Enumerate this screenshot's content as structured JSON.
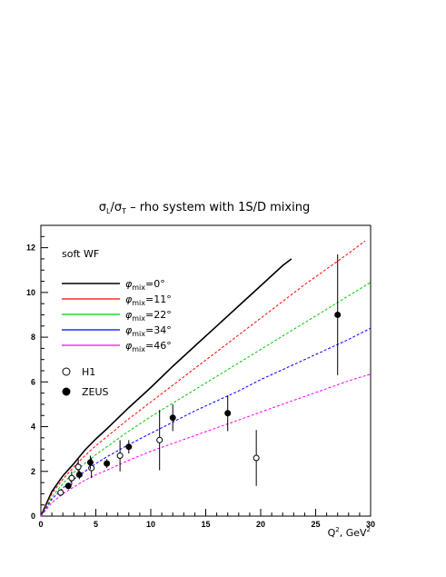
{
  "chart_data": {
    "type": "line",
    "title": "σL/σT – rho system with 1S/D mixing",
    "title_parts": {
      "sigma": "σ",
      "L": "L",
      "slash": "/",
      "T": "T",
      "rest": " – rho system with 1S/D mixing"
    },
    "annotation": "soft WF",
    "xlabel": "Q², GeV²",
    "xlabel_parts": {
      "Q": "Q",
      "sup1": "2",
      "mid": ", GeV",
      "sup2": "2"
    },
    "ylabel": "",
    "xlim": [
      0,
      30
    ],
    "ylim": [
      0,
      13
    ],
    "x_ticks": [
      0,
      5,
      10,
      15,
      20,
      25,
      30
    ],
    "y_ticks": [
      0,
      2,
      4,
      6,
      8,
      10,
      12
    ],
    "grid": false,
    "legend_position": "upper-left",
    "series": [
      {
        "name": "φmix=0°",
        "mix": "0°",
        "color": "#000000",
        "dashed": false,
        "x": [
          0,
          1,
          2,
          3,
          4,
          5,
          6,
          8,
          10,
          12,
          14,
          16,
          18,
          20,
          22,
          22.8
        ],
        "y": [
          0,
          1.1,
          1.8,
          2.35,
          2.95,
          3.45,
          3.9,
          4.85,
          5.75,
          6.7,
          7.6,
          8.5,
          9.4,
          10.3,
          11.2,
          11.5
        ]
      },
      {
        "name": "φmix=11°",
        "mix": "11°",
        "color": "#ff0000",
        "dashed": true,
        "x": [
          0,
          1,
          2,
          3,
          4,
          5,
          6,
          8,
          10,
          12,
          14,
          16,
          18,
          20,
          22,
          24,
          26,
          28,
          29.5
        ],
        "y": [
          0,
          1.0,
          1.65,
          2.2,
          2.7,
          3.15,
          3.55,
          4.35,
          5.1,
          5.85,
          6.6,
          7.35,
          8.1,
          8.85,
          9.6,
          10.35,
          11.05,
          11.75,
          12.3
        ]
      },
      {
        "name": "φmix=22°",
        "mix": "22°",
        "color": "#00cc00",
        "dashed": true,
        "x": [
          0,
          1,
          2,
          3,
          4,
          5,
          6,
          8,
          10,
          12,
          14,
          16,
          18,
          20,
          22,
          24,
          26,
          28,
          30
        ],
        "y": [
          0,
          0.85,
          1.45,
          1.95,
          2.35,
          2.75,
          3.1,
          3.8,
          4.45,
          5.05,
          5.65,
          6.25,
          6.85,
          7.45,
          8.05,
          8.65,
          9.25,
          9.85,
          10.45
        ]
      },
      {
        "name": "φmix=34°",
        "mix": "34°",
        "color": "#0000ff",
        "dashed": true,
        "x": [
          0,
          1,
          2,
          3,
          4,
          5,
          6,
          8,
          10,
          12,
          14,
          16,
          18,
          20,
          22,
          24,
          26,
          28,
          30
        ],
        "y": [
          0,
          0.75,
          1.25,
          1.65,
          2.0,
          2.35,
          2.65,
          3.2,
          3.7,
          4.2,
          4.7,
          5.15,
          5.6,
          6.1,
          6.55,
          7.0,
          7.45,
          7.9,
          8.4
        ]
      },
      {
        "name": "φmix=46°",
        "mix": "46°",
        "color": "#ff00ff",
        "dashed": true,
        "x": [
          0,
          1,
          2,
          3,
          4,
          5,
          6,
          8,
          10,
          12,
          14,
          16,
          18,
          20,
          22,
          24,
          26,
          28,
          30
        ],
        "y": [
          0,
          0.6,
          1.0,
          1.3,
          1.6,
          1.85,
          2.05,
          2.5,
          2.9,
          3.25,
          3.6,
          3.95,
          4.3,
          4.65,
          5.0,
          5.35,
          5.7,
          6.05,
          6.35
        ]
      }
    ],
    "data_sets": [
      {
        "name": "H1",
        "marker": "open-circle",
        "points": [
          {
            "x": 1.8,
            "y": 1.05,
            "err": 0.15
          },
          {
            "x": 2.8,
            "y": 1.7,
            "err": 0.3
          },
          {
            "x": 3.4,
            "y": 2.2,
            "err": 0.35
          },
          {
            "x": 4.6,
            "y": 2.15,
            "err": 0.45
          },
          {
            "x": 7.2,
            "y": 2.7,
            "err": 0.7
          },
          {
            "x": 10.8,
            "y": 3.4,
            "err": 1.35
          },
          {
            "x": 19.6,
            "y": 2.6,
            "err": 1.25
          }
        ]
      },
      {
        "name": "ZEUS",
        "marker": "filled-circle",
        "points": [
          {
            "x": 2.5,
            "y": 1.35,
            "err": 0.15
          },
          {
            "x": 3.5,
            "y": 1.85,
            "err": 0.2
          },
          {
            "x": 4.5,
            "y": 2.4,
            "err": 0.3
          },
          {
            "x": 6.0,
            "y": 2.35,
            "err": 0.2
          },
          {
            "x": 8.0,
            "y": 3.1,
            "err": 0.3
          },
          {
            "x": 12.0,
            "y": 4.4,
            "err": 0.6
          },
          {
            "x": 17.0,
            "y": 4.6,
            "err": 0.8
          },
          {
            "x": 27.0,
            "y": 9.0,
            "err": 2.7
          }
        ]
      }
    ]
  }
}
